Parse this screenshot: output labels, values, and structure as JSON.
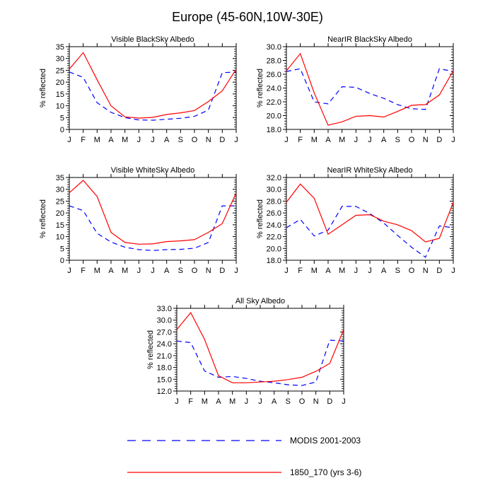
{
  "figure": {
    "title": "Europe (45-60N,10W-30E)",
    "legend": [
      {
        "label": "MODIS 2001-2003",
        "color": "#0000ff",
        "dash": true
      },
      {
        "label": "1850_170 (yrs 3-6)",
        "color": "#ff0000",
        "dash": false
      }
    ]
  },
  "chart_data": [
    {
      "type": "line",
      "title": "Visible BlackSky Albedo",
      "ylabel": "% reflected",
      "categories": [
        "J",
        "F",
        "M",
        "A",
        "M",
        "J",
        "J",
        "A",
        "S",
        "O",
        "N",
        "D",
        "J"
      ],
      "ylim": [
        0,
        35
      ],
      "yticks": [
        0,
        5,
        10,
        15,
        20,
        25,
        30,
        35
      ],
      "ytick_labels": [
        "0",
        "5",
        "10",
        "15",
        "20",
        "25",
        "30",
        "35"
      ],
      "series": [
        {
          "name": "MODIS 2001-2003",
          "values": [
            24.3,
            22.0,
            11.3,
            7.2,
            5.0,
            4.0,
            3.9,
            4.3,
            4.7,
            5.5,
            8.2,
            24.0,
            24.3
          ]
        },
        {
          "name": "1850_170 (yrs 3-6)",
          "values": [
            25.5,
            32.5,
            21.0,
            10.0,
            5.3,
            4.8,
            5.1,
            6.3,
            7.0,
            8.0,
            11.8,
            16.3,
            25.5
          ]
        }
      ]
    },
    {
      "type": "line",
      "title": "NearIR BlackSky Albedo",
      "ylabel": "% reflected",
      "categories": [
        "J",
        "F",
        "M",
        "A",
        "M",
        "J",
        "J",
        "A",
        "S",
        "O",
        "N",
        "D",
        "J"
      ],
      "ylim": [
        18,
        30
      ],
      "yticks": [
        18,
        20,
        22,
        24,
        26,
        28,
        30
      ],
      "ytick_labels": [
        "18.0",
        "20.0",
        "22.0",
        "24.0",
        "26.0",
        "28.0",
        "30.0"
      ],
      "series": [
        {
          "name": "MODIS 2001-2003",
          "values": [
            26.4,
            26.8,
            22.0,
            21.7,
            24.2,
            24.1,
            23.2,
            22.5,
            21.6,
            21.0,
            20.9,
            26.8,
            26.4
          ]
        },
        {
          "name": "1850_170 (yrs 3-6)",
          "values": [
            26.5,
            29.0,
            23.3,
            18.6,
            19.1,
            19.9,
            20.0,
            19.8,
            20.6,
            21.5,
            21.6,
            23.0,
            26.5
          ]
        }
      ]
    },
    {
      "type": "line",
      "title": "Visible WhiteSky Albedo",
      "ylabel": "% reflected",
      "categories": [
        "J",
        "F",
        "M",
        "A",
        "M",
        "J",
        "J",
        "A",
        "S",
        "O",
        "N",
        "D",
        "J"
      ],
      "ylim": [
        0,
        35
      ],
      "yticks": [
        0,
        5,
        10,
        15,
        20,
        25,
        30,
        35
      ],
      "ytick_labels": [
        "0",
        "5",
        "10",
        "15",
        "20",
        "25",
        "30",
        "35"
      ],
      "series": [
        {
          "name": "MODIS 2001-2003",
          "values": [
            23.0,
            21.0,
            11.4,
            7.7,
            5.5,
            4.5,
            4.1,
            4.5,
            4.6,
            5.1,
            7.5,
            23.0,
            23.0
          ]
        },
        {
          "name": "1850_170 (yrs 3-6)",
          "values": [
            28.5,
            33.8,
            27.0,
            11.8,
            7.5,
            6.8,
            6.9,
            7.9,
            8.2,
            8.7,
            11.8,
            15.5,
            28.5
          ]
        }
      ]
    },
    {
      "type": "line",
      "title": "NearIR WhiteSky Albedo",
      "ylabel": "% reflected",
      "categories": [
        "J",
        "F",
        "M",
        "A",
        "M",
        "J",
        "J",
        "A",
        "S",
        "O",
        "N",
        "D",
        "J"
      ],
      "ylim": [
        18,
        32
      ],
      "yticks": [
        18,
        20,
        22,
        24,
        26,
        28,
        30,
        32
      ],
      "ytick_labels": [
        "18.0",
        "20.0",
        "22.0",
        "24.0",
        "26.0",
        "28.0",
        "30.0",
        "32.0"
      ],
      "series": [
        {
          "name": "MODIS 2001-2003",
          "values": [
            23.5,
            24.9,
            22.1,
            23.1,
            27.1,
            27.1,
            25.9,
            24.3,
            22.2,
            20.2,
            18.5,
            23.8,
            23.5
          ]
        },
        {
          "name": "1850_170 (yrs 3-6)",
          "values": [
            27.8,
            30.9,
            28.5,
            22.4,
            24.0,
            25.6,
            25.7,
            24.6,
            24.0,
            23.0,
            21.1,
            21.7,
            27.8
          ]
        }
      ]
    },
    {
      "type": "line",
      "title": "All Sky Albedo",
      "ylabel": "% reflected",
      "categories": [
        "J",
        "F",
        "M",
        "A",
        "M",
        "J",
        "J",
        "A",
        "S",
        "O",
        "N",
        "D",
        "J"
      ],
      "ylim": [
        12,
        33
      ],
      "yticks": [
        12,
        15,
        18,
        21,
        24,
        27,
        30,
        33
      ],
      "ytick_labels": [
        "12.0",
        "15.0",
        "18.0",
        "21.0",
        "24.0",
        "27.0",
        "30.0",
        "33.0"
      ],
      "series": [
        {
          "name": "MODIS 2001-2003",
          "values": [
            24.7,
            24.3,
            17.1,
            15.5,
            15.7,
            15.2,
            14.5,
            14.1,
            13.6,
            13.4,
            14.3,
            24.9,
            24.7
          ]
        },
        {
          "name": "1850_170 (yrs 3-6)",
          "values": [
            27.6,
            31.9,
            25.1,
            15.9,
            14.1,
            14.1,
            14.3,
            14.5,
            14.9,
            15.5,
            17.0,
            19.0,
            27.6
          ]
        }
      ]
    }
  ]
}
